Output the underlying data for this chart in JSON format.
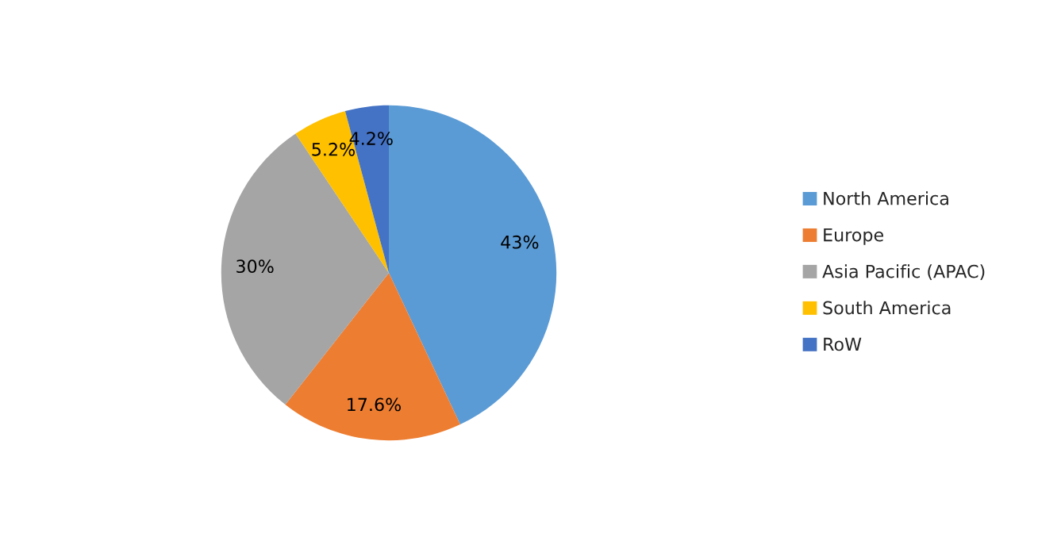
{
  "chart_data": {
    "type": "pie",
    "categories": [
      "North America",
      "Europe",
      "Asia Pacific (APAC)",
      "South America",
      "RoW"
    ],
    "values": [
      43,
      17.6,
      30,
      5.2,
      4.2
    ],
    "value_labels": [
      "43%",
      "17.6%",
      "30%",
      "5.2%",
      "4.2%"
    ],
    "colors": [
      "#5b9bd5",
      "#ed7d31",
      "#a5a5a5",
      "#ffc000",
      "#4472c4"
    ],
    "legend": "right"
  }
}
